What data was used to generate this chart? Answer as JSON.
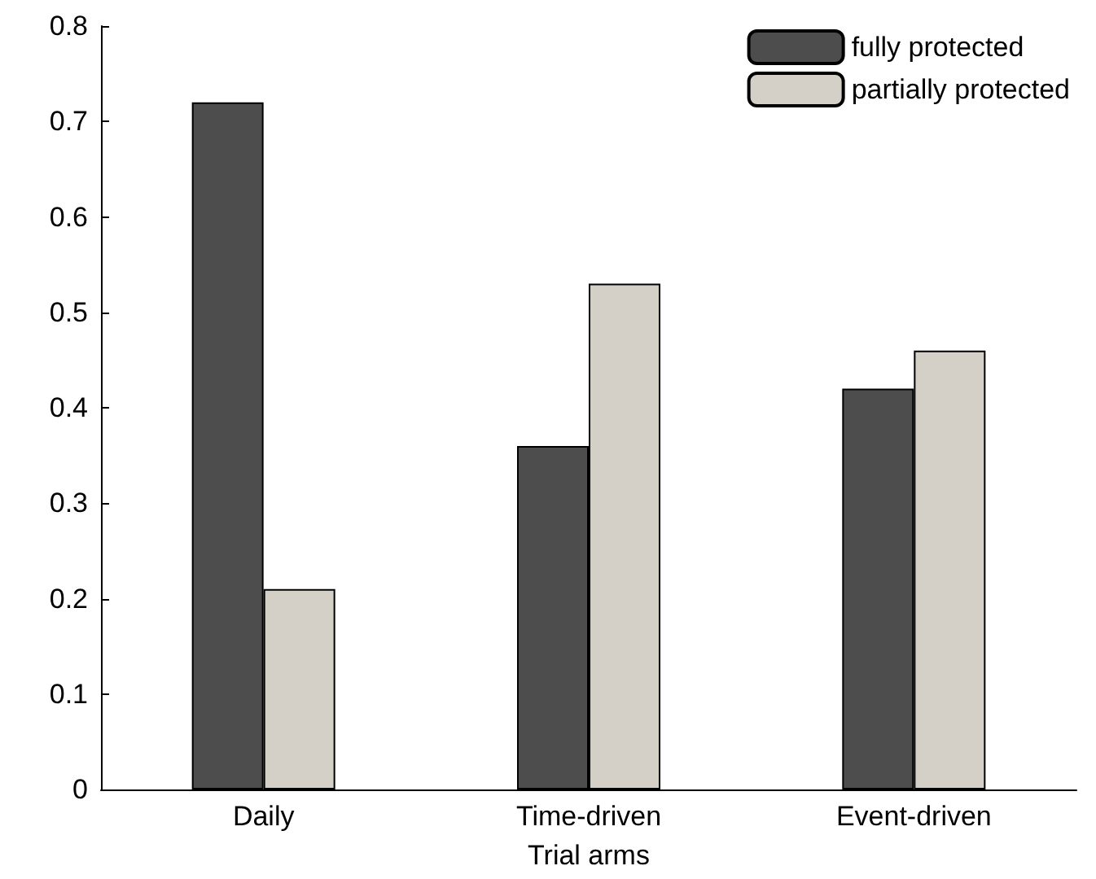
{
  "chart_data": {
    "type": "bar",
    "xlabel": "Trial arms",
    "categories": [
      "Daily",
      "Time-driven",
      "Event-driven"
    ],
    "series": [
      {
        "name": "fully protected",
        "color": "#4d4d4d",
        "values": [
          0.72,
          0.36,
          0.42
        ]
      },
      {
        "name": "partially protected",
        "color": "#d4d0c8",
        "values": [
          0.21,
          0.53,
          0.46
        ]
      }
    ],
    "ylim": [
      0,
      0.8
    ],
    "yticks": [
      0,
      0.1,
      0.2,
      0.3,
      0.4,
      0.5,
      0.6,
      0.7,
      0.8
    ],
    "grid": false,
    "legend": "top right"
  }
}
